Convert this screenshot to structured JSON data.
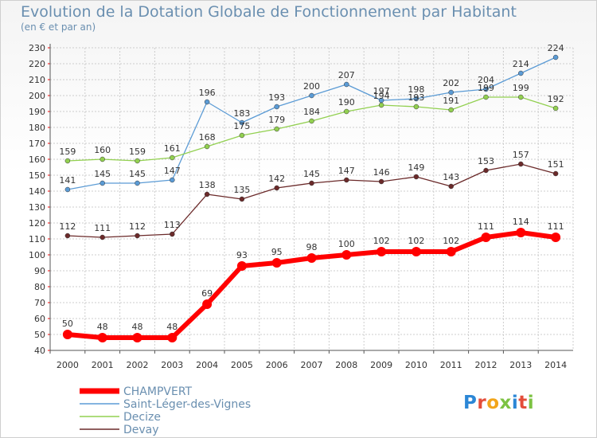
{
  "title": "Evolution de la Dotation Globale de Fonctionnement par Habitant",
  "subtitle": "(en € et par an)",
  "logo": [
    "P",
    "r",
    "o",
    "x",
    "i",
    "t",
    "i"
  ],
  "colors": {
    "CHAMPVERT": "#ff0000",
    "Saint-Léger-des-Vignes": "#5b9bd5",
    "Decize": "#92d050",
    "Devay": "#6b2a2a",
    "grid": "#cccccc",
    "tickmark": "#ff0000"
  },
  "chart_data": {
    "type": "line",
    "title": "Evolution de la Dotation Globale de Fonctionnement par Habitant",
    "subtitle": "(en € et par an)",
    "xlabel": "",
    "ylabel": "",
    "x": [
      2000,
      2001,
      2002,
      2003,
      2004,
      2005,
      2006,
      2007,
      2008,
      2009,
      2010,
      2011,
      2012,
      2013,
      2014
    ],
    "ylim": [
      40,
      230
    ],
    "yticks": [
      40,
      50,
      60,
      70,
      80,
      90,
      100,
      110,
      120,
      130,
      140,
      150,
      160,
      170,
      180,
      190,
      200,
      210,
      220,
      230
    ],
    "grid": true,
    "legend": "bottom-left",
    "series": [
      {
        "name": "CHAMPVERT",
        "values": [
          50,
          48,
          48,
          48,
          69,
          93,
          95,
          98,
          100,
          102,
          102,
          102,
          111,
          114,
          111
        ]
      },
      {
        "name": "Saint-Léger-des-Vignes",
        "values": [
          141,
          145,
          145,
          147,
          196,
          183,
          193,
          200,
          207,
          197,
          198,
          202,
          204,
          214,
          224
        ]
      },
      {
        "name": "Decize",
        "values": [
          159,
          160,
          159,
          161,
          168,
          175,
          179,
          184,
          190,
          194,
          193,
          191,
          199,
          199,
          192
        ]
      },
      {
        "name": "Devay",
        "values": [
          112,
          111,
          112,
          113,
          138,
          135,
          142,
          145,
          147,
          146,
          149,
          143,
          153,
          157,
          151
        ]
      }
    ]
  }
}
